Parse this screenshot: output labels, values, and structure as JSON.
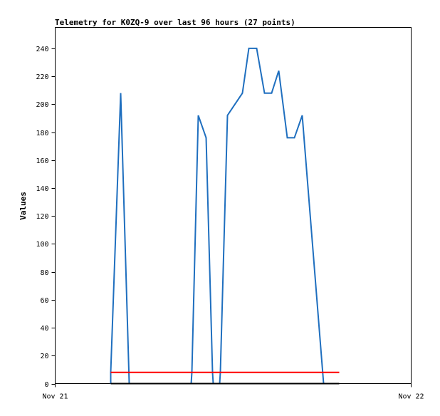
{
  "chart_data": {
    "type": "line",
    "title": "Telemetry for K0ZQ-9 over last 96 hours (27 points)",
    "xlabel": "",
    "ylabel": "Values",
    "x_tick_labels": [
      "Nov 21",
      "Nov 22"
    ],
    "xlim": [
      0,
      1
    ],
    "ylim": [
      0,
      255
    ],
    "y_ticks": [
      0,
      20,
      40,
      60,
      80,
      100,
      120,
      140,
      160,
      180,
      200,
      220,
      240
    ],
    "grid": false,
    "legend": "none",
    "series": [
      {
        "color": "#1f6fbf",
        "points": [
          [
            0.156,
            0
          ],
          [
            0.156,
            8
          ],
          [
            0.184,
            208
          ],
          [
            0.208,
            0
          ],
          [
            0.382,
            0
          ],
          [
            0.384,
            8
          ],
          [
            0.402,
            192
          ],
          [
            0.424,
            176
          ],
          [
            0.442,
            8
          ],
          [
            0.444,
            0
          ],
          [
            0.462,
            0
          ],
          [
            0.464,
            8
          ],
          [
            0.484,
            192
          ],
          [
            0.526,
            208
          ],
          [
            0.544,
            240
          ],
          [
            0.566,
            240
          ],
          [
            0.588,
            208
          ],
          [
            0.608,
            208
          ],
          [
            0.628,
            224
          ],
          [
            0.652,
            176
          ],
          [
            0.672,
            176
          ],
          [
            0.694,
            192
          ],
          [
            0.754,
            0
          ]
        ]
      },
      {
        "color": "#ff0000",
        "points": [
          [
            0.156,
            8
          ],
          [
            0.798,
            8
          ]
        ]
      },
      {
        "color": "#000000",
        "points": [
          [
            0.156,
            0
          ],
          [
            0.798,
            0
          ]
        ]
      }
    ]
  }
}
